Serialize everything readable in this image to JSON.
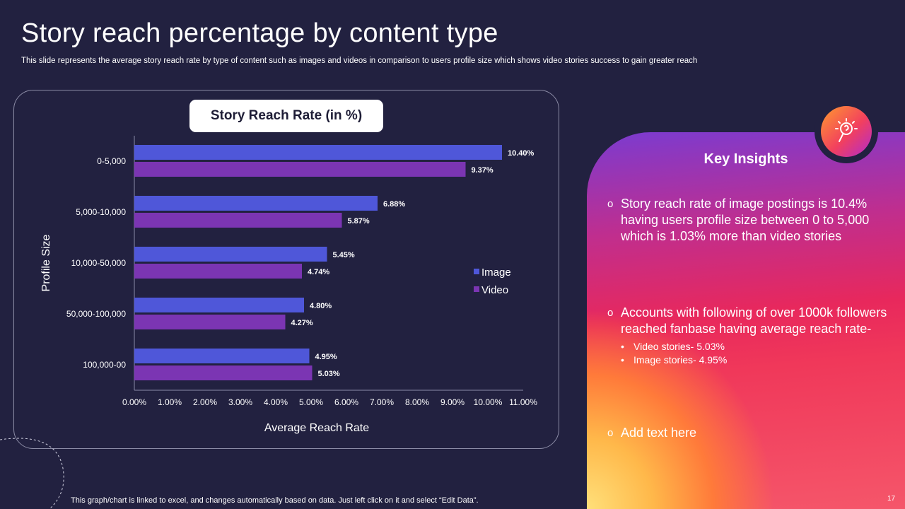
{
  "slide": {
    "title": "Story reach percentage by content type",
    "subtitle": "This slide represents the average story reach rate by type  of content such as images and videos in comparison to users profile size which shows video stories success to gain greater reach",
    "footnote": "This graph/chart is linked to excel,  and changes automatically based on data. Just left click on it and select “Edit Data”.",
    "page_number": "17"
  },
  "chart_data": {
    "type": "bar",
    "orientation": "horizontal",
    "title": "Story Reach Rate (in %)",
    "xlabel": "Average Reach Rate",
    "ylabel": "Profile Size",
    "categories": [
      "0-5,000",
      "5,000-10,000",
      "10,000-50,000",
      "50,000-100,000",
      "100,000-00"
    ],
    "series": [
      {
        "name": "Image",
        "values": [
          10.4,
          6.88,
          5.45,
          4.8,
          4.95
        ],
        "labels": [
          "10.40%",
          "6.88%",
          "5.45%",
          "4.80%",
          "4.95%"
        ],
        "color": "#4f57d9"
      },
      {
        "name": "Video",
        "values": [
          9.37,
          5.87,
          4.74,
          4.27,
          5.03
        ],
        "labels": [
          "9.37%",
          "5.87%",
          "4.74%",
          "4.27%",
          "5.03%"
        ],
        "color": "#7b35b3"
      }
    ],
    "xlim": [
      0,
      11
    ],
    "xticks": [
      "0.00%",
      "1.00%",
      "2.00%",
      "3.00%",
      "4.00%",
      "5.00%",
      "6.00%",
      "7.00%",
      "8.00%",
      "9.00%",
      "10.00%",
      "11.00%"
    ],
    "legend": "right",
    "grid": false
  },
  "insights": {
    "title": "Key Insights",
    "bullet_glyph": "o",
    "items": [
      {
        "text": "Story reach rate of image postings is 10.4% having users profile size between 0 to 5,000 which is 1.03% more than video stories"
      },
      {
        "text": "Accounts with following of over 1000k followers reached fanbase having average reach rate-",
        "sub": [
          "Video stories- 5.03%",
          "Image stories- 4.95%"
        ]
      },
      {
        "text": "Add text here"
      }
    ],
    "icon": "lightbulb-magnifier-icon"
  }
}
